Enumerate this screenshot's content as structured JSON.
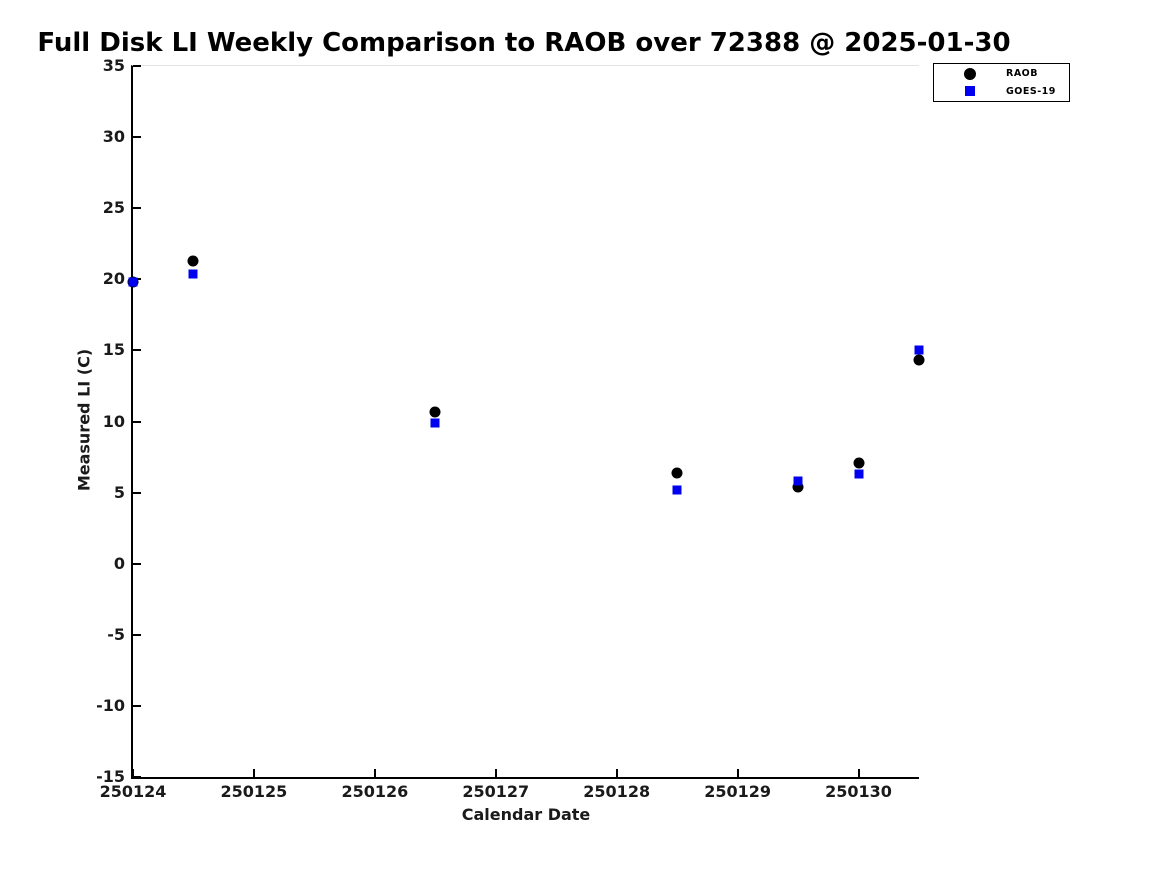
{
  "chart_data": {
    "type": "scatter",
    "title": "Full Disk LI Weekly Comparison to RAOB over 72388 @ 2025-01-30",
    "xlabel": "Calendar Date",
    "ylabel": "Measured LI (C)",
    "xlim": [
      250124,
      250130.5
    ],
    "ylim": [
      -15,
      35
    ],
    "xticks": [
      250124,
      250125,
      250126,
      250127,
      250128,
      250129,
      250130
    ],
    "yticks": [
      35,
      30,
      25,
      20,
      15,
      10,
      5,
      0,
      -5,
      -10,
      -15
    ],
    "grid": false,
    "legend_position": "top-right-outside",
    "axis_color": "#000000",
    "background_color": "#ffffff",
    "series": [
      {
        "name": "RAOB",
        "marker": "circle",
        "color": "#000000",
        "points": [
          {
            "x": 250124.0,
            "y": 19.8
          },
          {
            "x": 250124.5,
            "y": 21.3
          },
          {
            "x": 250126.5,
            "y": 10.7
          },
          {
            "x": 250128.5,
            "y": 6.4
          },
          {
            "x": 250129.5,
            "y": 5.4
          },
          {
            "x": 250130.0,
            "y": 7.1
          },
          {
            "x": 250130.5,
            "y": 14.3
          }
        ]
      },
      {
        "name": "GOES-19",
        "marker": "square",
        "color": "#0000f0",
        "points": [
          {
            "x": 250124.0,
            "y": 19.8
          },
          {
            "x": 250124.5,
            "y": 20.4
          },
          {
            "x": 250126.5,
            "y": 9.9
          },
          {
            "x": 250128.5,
            "y": 5.2
          },
          {
            "x": 250129.5,
            "y": 5.8
          },
          {
            "x": 250130.0,
            "y": 6.3
          },
          {
            "x": 250130.5,
            "y": 15.0
          }
        ]
      }
    ]
  }
}
